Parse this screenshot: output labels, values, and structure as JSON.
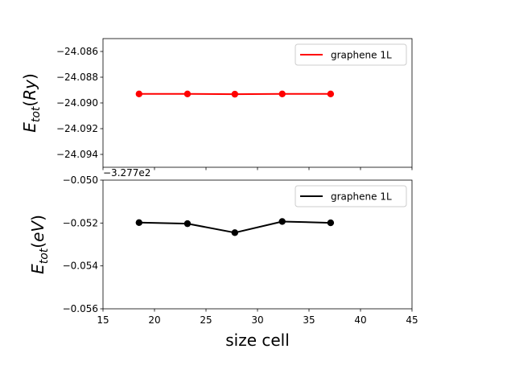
{
  "chart_data": [
    {
      "type": "line",
      "ylabel": "E_tot(Ry)",
      "ylim": [
        -24.095,
        -24.085
      ],
      "yticks": [
        "−24.086",
        "−24.088",
        "−24.090",
        "−24.092",
        "−24.094"
      ],
      "ytick_values": [
        -24.086,
        -24.088,
        -24.09,
        -24.092,
        -24.094
      ],
      "xlim": [
        15,
        45
      ],
      "xticks": [
        15,
        20,
        25,
        30,
        35,
        40,
        45
      ],
      "show_xtick_labels": false,
      "grid": false,
      "legend_position": "upper right",
      "series": [
        {
          "name": "graphene 1L",
          "color": "#ff0000",
          "x": [
            18.5,
            23.2,
            27.8,
            32.4,
            37.1
          ],
          "y": [
            -24.0893,
            -24.0893,
            -24.08932,
            -24.0893,
            -24.0893
          ]
        }
      ]
    },
    {
      "type": "line",
      "ylabel": "E_tot(eV)",
      "xlabel": "size cell",
      "offset_text": "−3.277e2",
      "ylim": [
        -0.056,
        -0.05
      ],
      "yticks": [
        "−0.050",
        "−0.052",
        "−0.054",
        "−0.056"
      ],
      "ytick_values": [
        -0.05,
        -0.052,
        -0.054,
        -0.056
      ],
      "xlim": [
        15,
        45
      ],
      "xticks": [
        15,
        20,
        25,
        30,
        35,
        40,
        45
      ],
      "grid": false,
      "legend_position": "upper right",
      "series": [
        {
          "name": "graphene 1L",
          "color": "#000000",
          "x": [
            18.5,
            23.2,
            27.8,
            32.4,
            37.1
          ],
          "y": [
            -0.05198,
            -0.05203,
            -0.05245,
            -0.05193,
            -0.05199
          ]
        }
      ]
    }
  ]
}
